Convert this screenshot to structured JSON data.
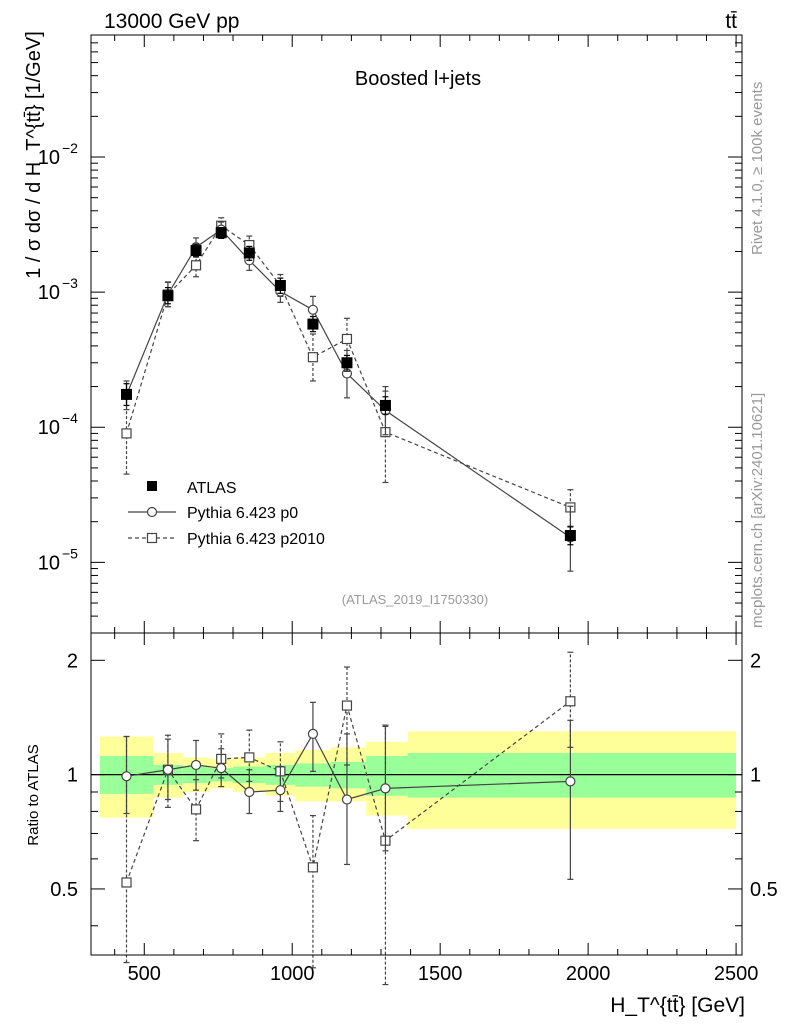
{
  "header": {
    "left_label": "13000 GeV pp",
    "right_label": "tt̄"
  },
  "side_labels": {
    "rivet": "Rivet 4.1.0, ≥ 100k events",
    "mcplots": "mcplots.cern.ch [arXiv:2401.10621]"
  },
  "chart_data": [
    {
      "type": "line",
      "panel": "main",
      "title": "Boosted l+jets",
      "watermark": "(ATLAS_2019_I1750330)",
      "xlabel": "H_T^{tt̄} [GeV]",
      "ylabel": "1 / σ dσ / d H_T^{tt̄} [1/GeV]",
      "yscale": "log",
      "xlim": [
        320,
        2520
      ],
      "ylim": [
        3e-06,
        0.08
      ],
      "x_ticks": [
        500,
        1000,
        1500,
        2000,
        2500
      ],
      "y_ticks": [
        {
          "value": 1e-05,
          "base": "10",
          "exp": "−5"
        },
        {
          "value": 0.0001,
          "base": "10",
          "exp": "−4"
        },
        {
          "value": 0.001,
          "base": "10",
          "exp": "−3"
        },
        {
          "value": 0.01,
          "base": "10",
          "exp": "−2"
        }
      ],
      "legend": {
        "position": "lower-left",
        "entries": [
          "ATLAS",
          "Pythia 6.423 p0",
          "Pythia 6.423 p2010"
        ]
      },
      "series": [
        {
          "name": "ATLAS",
          "style": "filled-square",
          "color": "#000000",
          "x": [
            440,
            580,
            675,
            760,
            855,
            960,
            1070,
            1185,
            1315,
            1940
          ],
          "x_err": [
            [
              350,
              530
            ],
            [
              530,
              630
            ],
            [
              630,
              720
            ],
            [
              720,
              800
            ],
            [
              800,
              910
            ],
            [
              910,
              1010
            ],
            [
              1010,
              1130
            ],
            [
              1130,
              1250
            ],
            [
              1250,
              1390
            ],
            [
              1390,
              2500
            ]
          ],
          "y": [
            0.000175,
            0.00094,
            0.00203,
            0.00275,
            0.00195,
            0.00112,
            0.00058,
            0.0003,
            0.000145,
            1.58e-05
          ],
          "y_err": [
            [
              0.000145,
              0.00021
            ],
            [
              0.00082,
              0.00108
            ],
            [
              0.00182,
              0.00226
            ],
            [
              0.0025,
              0.003
            ],
            [
              0.00172,
              0.00218
            ],
            [
              0.00098,
              0.00127
            ],
            [
              0.00051,
              0.00066
            ],
            [
              0.00026,
              0.00034
            ],
            [
              0.000125,
              0.000168
            ],
            [
              1.35e-05,
              1.83e-05
            ]
          ]
        },
        {
          "name": "Pythia 6.423 p0",
          "style": "open-circle-solid",
          "color": "#444444",
          "x": [
            440,
            580,
            675,
            760,
            855,
            960,
            1070,
            1185,
            1315,
            1940
          ],
          "y": [
            0.000173,
            0.000965,
            0.00215,
            0.0029,
            0.00172,
            0.00101,
            0.00074,
            0.00025,
            0.000133,
            1.53e-05
          ],
          "y_err": [
            [
              0.000135,
              0.00022
            ],
            [
              0.00078,
              0.00119
            ],
            [
              0.00183,
              0.00252
            ],
            [
              0.0025,
              0.0033
            ],
            [
              0.00145,
              0.00204
            ],
            [
              0.00084,
              0.00121
            ],
            [
              0.00057,
              0.00093
            ],
            [
              0.000165,
              0.00037
            ],
            [
              8.8e-05,
              0.0002
            ],
            [
              8.6e-06,
              2.6e-05
            ]
          ]
        },
        {
          "name": "Pythia 6.423 p2010",
          "style": "open-square-dashed",
          "color": "#444444",
          "x": [
            440,
            580,
            675,
            760,
            855,
            960,
            1070,
            1185,
            1315,
            1940
          ],
          "y": [
            9e-05,
            0.00096,
            0.00158,
            0.0031,
            0.00223,
            0.00112,
            0.00033,
            0.00045,
            9.2e-05,
            2.55e-05
          ],
          "y_err": [
            [
              4.5e-05,
              0.000165
            ],
            [
              0.00078,
              0.00118
            ],
            [
              0.0013,
              0.00192
            ],
            [
              0.0027,
              0.00355
            ],
            [
              0.0019,
              0.0026
            ],
            [
              0.00093,
              0.00135
            ],
            [
              0.00022,
              0.00049
            ],
            [
              0.00031,
              0.00064
            ],
            [
              3.9e-05,
              0.000185
            ],
            [
              1.85e-05,
              3.45e-05
            ]
          ]
        }
      ]
    },
    {
      "type": "line",
      "panel": "ratio",
      "ylabel": "Ratio to ATLAS",
      "xlim": [
        320,
        2520
      ],
      "ylim": [
        0.335,
        2.36
      ],
      "yscale": "log",
      "y_ticks": [
        {
          "value": 0.5,
          "label": "0.5"
        },
        {
          "value": 1,
          "label": "1"
        },
        {
          "value": 2,
          "label": "2"
        }
      ],
      "bands": {
        "bins": [
          [
            350,
            530
          ],
          [
            530,
            630
          ],
          [
            630,
            720
          ],
          [
            720,
            800
          ],
          [
            800,
            910
          ],
          [
            910,
            1010
          ],
          [
            1010,
            1130
          ],
          [
            1130,
            1250
          ],
          [
            1250,
            1390
          ],
          [
            1390,
            2500
          ]
        ],
        "stat_color": "#99ff99",
        "total_color": "#ffff99",
        "stat": [
          [
            0.89,
            1.12
          ],
          [
            0.94,
            1.06
          ],
          [
            0.95,
            1.05
          ],
          [
            0.96,
            1.04
          ],
          [
            0.95,
            1.05
          ],
          [
            0.94,
            1.06
          ],
          [
            0.93,
            1.07
          ],
          [
            0.92,
            1.08
          ],
          [
            0.88,
            1.12
          ],
          [
            0.87,
            1.14
          ]
        ],
        "total": [
          [
            0.77,
            1.26
          ],
          [
            0.87,
            1.14
          ],
          [
            0.9,
            1.11
          ],
          [
            0.92,
            1.1
          ],
          [
            0.9,
            1.11
          ],
          [
            0.88,
            1.14
          ],
          [
            0.85,
            1.16
          ],
          [
            0.85,
            1.18
          ],
          [
            0.78,
            1.22
          ],
          [
            0.72,
            1.3
          ]
        ]
      },
      "reference_line": 1,
      "series": [
        {
          "name": "Pythia 6.423 p0",
          "style": "open-circle-solid",
          "color": "#444444",
          "x": [
            440,
            580,
            675,
            760,
            855,
            960,
            1070,
            1185,
            1315,
            1940
          ],
          "y": [
            0.99,
            1.03,
            1.06,
            1.04,
            0.9,
            0.91,
            1.28,
            0.86,
            0.92,
            0.96
          ],
          "y_err": [
            [
              0.79,
              1.26
            ],
            [
              0.86,
              1.24
            ],
            [
              0.91,
              1.23
            ],
            [
              0.93,
              1.17
            ],
            [
              0.79,
              1.03
            ],
            [
              0.8,
              1.05
            ],
            [
              1.02,
              1.55
            ],
            [
              0.58,
              1.28
            ],
            [
              0.63,
              1.34
            ],
            [
              0.53,
              1.39
            ]
          ]
        },
        {
          "name": "Pythia 6.423 p2010",
          "style": "open-square-dashed",
          "color": "#444444",
          "x": [
            440,
            580,
            675,
            760,
            855,
            960,
            1070,
            1185,
            1315,
            1940
          ],
          "y": [
            0.52,
            1.03,
            0.81,
            1.1,
            1.11,
            1.02,
            0.57,
            1.52,
            0.67,
            1.56
          ],
          "y_err": [
            [
              0.32,
              1.26
            ],
            [
              0.82,
              1.27
            ],
            [
              0.67,
              0.97
            ],
            [
              0.98,
              1.28
            ],
            [
              0.96,
              1.31
            ],
            [
              0.85,
              1.22
            ],
            [
              0.31,
              0.78
            ],
            [
              1.06,
              1.92
            ],
            [
              0.28,
              1.35
            ],
            [
              1.18,
              2.1
            ]
          ]
        }
      ]
    }
  ]
}
